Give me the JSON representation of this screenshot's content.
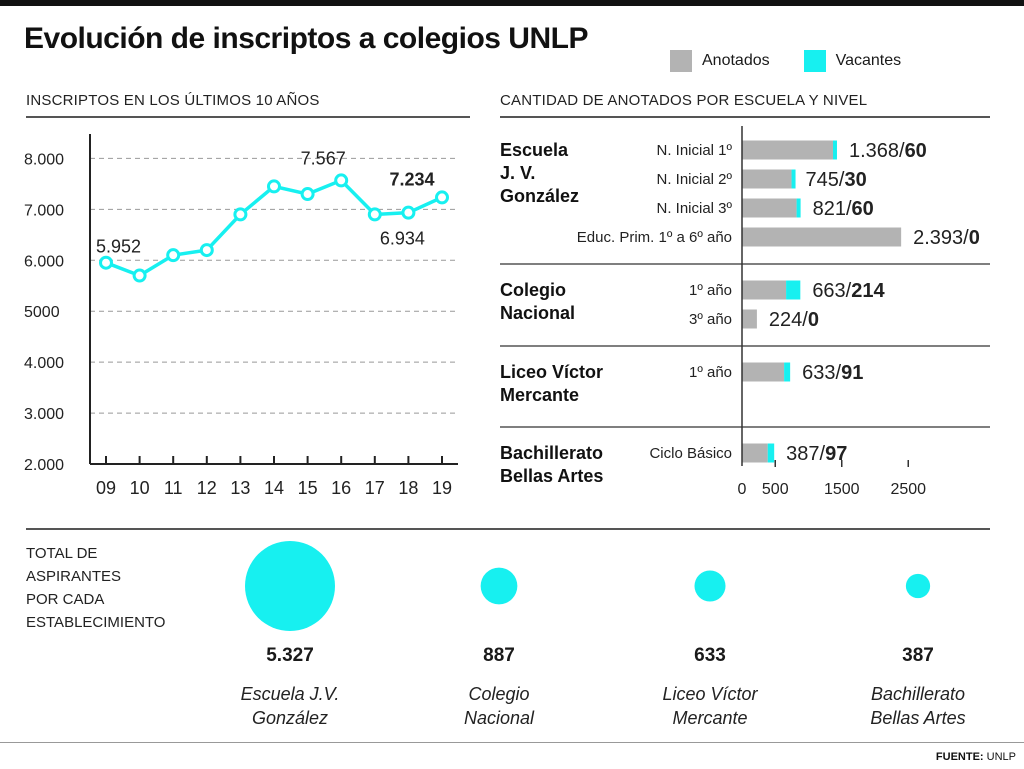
{
  "title": "Evolución de inscriptos a colegios UNLP",
  "legend": {
    "items": [
      {
        "label": "Anotados",
        "color": "#b3b3b3"
      },
      {
        "label": "Vacantes",
        "color": "#17f0f0"
      }
    ]
  },
  "colors": {
    "accent": "#17f0f0",
    "gray": "#b3b3b3"
  },
  "left_section_label": "INSCRIPTOS EN LOS ÚLTIMOS 10 AÑOS",
  "right_section_label": "CANTIDAD DE ANOTADOS POR ESCUELA Y NIVEL",
  "chart_data": [
    {
      "type": "line",
      "x": [
        "09",
        "10",
        "11",
        "12",
        "13",
        "14",
        "15",
        "16",
        "17",
        "18",
        "19"
      ],
      "values": [
        5952,
        5700,
        6100,
        6200,
        6900,
        7450,
        7300,
        7567,
        6900,
        6934,
        7234
      ],
      "ytick_labels": [
        "2.000",
        "3.000",
        "4.000",
        "5000",
        "6.000",
        "7.000",
        "8.000"
      ],
      "ytick_values": [
        2000,
        3000,
        4000,
        5000,
        6000,
        7000,
        8000
      ],
      "ylim": [
        2000,
        8400
      ],
      "annotations": [
        {
          "index": 0,
          "text": "5.952",
          "bold": false
        },
        {
          "index": 7,
          "text": "7.567",
          "bold": false
        },
        {
          "index": 9,
          "text": "6.934",
          "bold": false
        },
        {
          "index": 10,
          "text": "7.234",
          "bold": true
        }
      ],
      "grid": "horizontal-dashed"
    },
    {
      "type": "bar",
      "orientation": "horizontal-stacked",
      "xtick_labels": [
        "0",
        "500",
        "1500",
        "2500"
      ],
      "xtick_values": [
        0,
        500,
        1500,
        2500
      ],
      "xlim": [
        0,
        2700
      ],
      "groups": [
        {
          "school": "Escuela\nJ. V.\nGonzález",
          "rows": [
            {
              "level": "N. Inicial 1º",
              "anotados": 1368,
              "vacantes": 60,
              "label_a": "1.368",
              "label_v": "60"
            },
            {
              "level": "N. Inicial 2º",
              "anotados": 745,
              "vacantes": 30,
              "label_a": "745",
              "label_v": "30"
            },
            {
              "level": "N. Inicial 3º",
              "anotados": 821,
              "vacantes": 60,
              "label_a": "821",
              "label_v": "60"
            },
            {
              "level": "Educ. Prim. 1º a 6º año",
              "anotados": 2393,
              "vacantes": 0,
              "label_a": "2.393",
              "label_v": "0"
            }
          ]
        },
        {
          "school": "Colegio\nNacional",
          "rows": [
            {
              "level": "1º año",
              "anotados": 663,
              "vacantes": 214,
              "label_a": "663",
              "label_v": "214"
            },
            {
              "level": "3º año",
              "anotados": 224,
              "vacantes": 0,
              "label_a": "224",
              "label_v": "0"
            }
          ]
        },
        {
          "school": "Liceo Víctor\nMercante",
          "rows": [
            {
              "level": "1º año",
              "anotados": 633,
              "vacantes": 91,
              "label_a": "633",
              "label_v": "91"
            }
          ]
        },
        {
          "school": "Bachillerato\nBellas Artes",
          "rows": [
            {
              "level": "Ciclo Básico",
              "anotados": 387,
              "vacantes": 97,
              "label_a": "387",
              "label_v": "97"
            }
          ]
        }
      ]
    }
  ],
  "aspirantes": {
    "label_lines": [
      "TOTAL DE",
      "ASPIRANTES",
      "POR CADA",
      "ESTABLECIMIENTO"
    ],
    "items": [
      {
        "value": 5327,
        "value_label": "5.327",
        "name_lines": [
          "Escuela J.V.",
          "González"
        ]
      },
      {
        "value": 887,
        "value_label": "887",
        "name_lines": [
          "Colegio",
          "Nacional"
        ]
      },
      {
        "value": 633,
        "value_label": "633",
        "name_lines": [
          "Liceo Víctor",
          "Mercante"
        ]
      },
      {
        "value": 387,
        "value_label": "387",
        "name_lines": [
          "Bachillerato",
          "Bellas Artes"
        ]
      }
    ]
  },
  "source": {
    "prefix": "FUENTE:",
    "name": "UNLP"
  }
}
